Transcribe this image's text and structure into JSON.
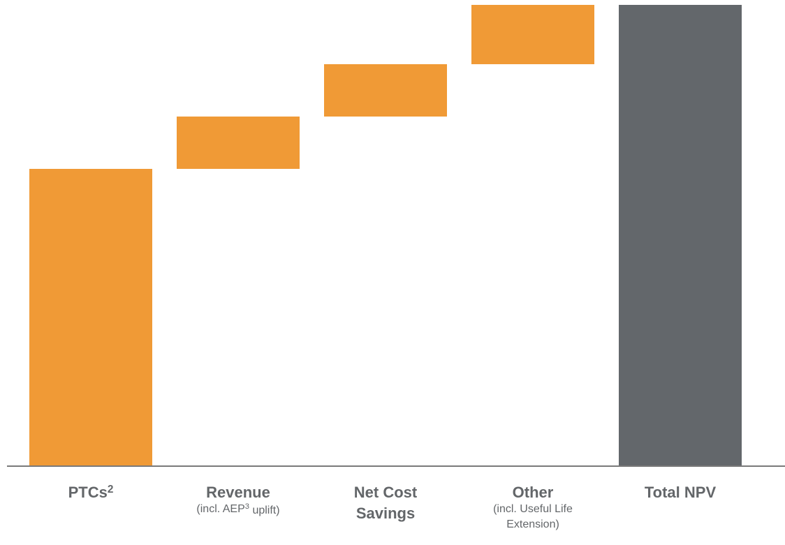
{
  "chart_data": {
    "type": "waterfall",
    "categories": [
      {
        "title": [
          [
            "PTCs",
            "2"
          ]
        ]
      },
      {
        "title": [
          [
            "Revenue"
          ]
        ],
        "note": [
          [
            "(incl. AEP",
            "3",
            " uplift)"
          ]
        ]
      },
      {
        "title": [
          [
            "Net Cost"
          ],
          [
            "Savings"
          ]
        ]
      },
      {
        "title": [
          [
            "Other"
          ]
        ],
        "note": [
          [
            "(incl. Useful Life"
          ],
          [
            "Extension)"
          ]
        ]
      },
      {
        "title": [
          [
            "Total NPV"
          ]
        ]
      }
    ],
    "values": [
      426,
      75,
      75,
      85,
      661
    ],
    "is_total": [
      false,
      false,
      false,
      false,
      true
    ],
    "color": "#f09a36",
    "total_color": "#63676b"
  }
}
